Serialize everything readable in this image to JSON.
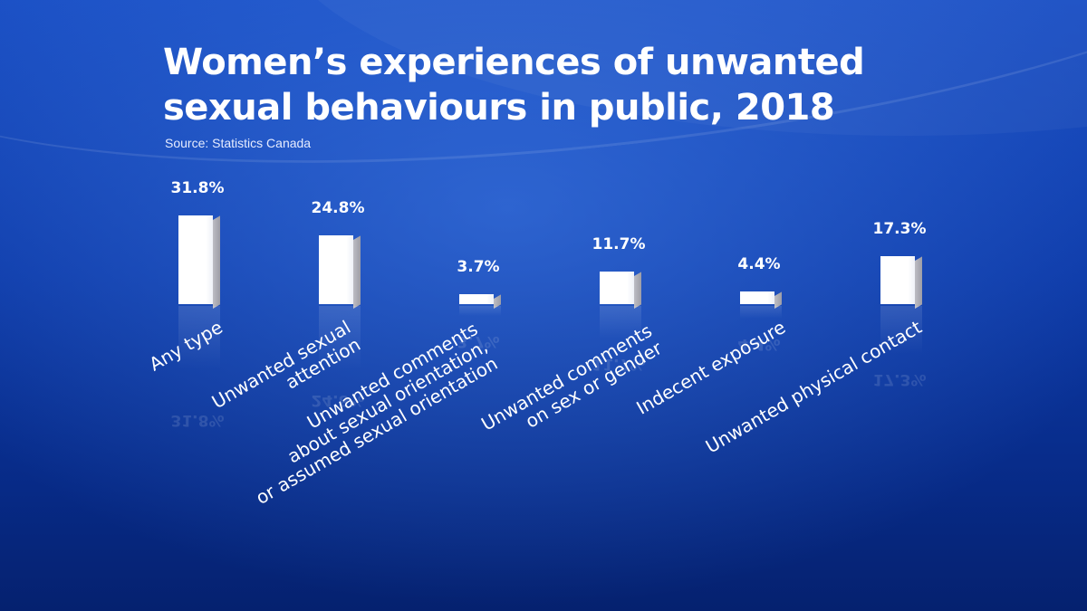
{
  "title": "Women’s experiences of unwanted sexual behaviours in public, 2018",
  "source": "Source: Statistics Canada",
  "colors": {
    "background": "#0d3aa8",
    "bar_face": "#ffffff",
    "bar_side": "#a8a8b0",
    "text": "#ffffff"
  },
  "chart_data": {
    "type": "bar",
    "title": "Women’s experiences of unwanted sexual behaviours in public, 2018",
    "subtitle": "Source: Statistics Canada",
    "xlabel": "",
    "ylabel": "",
    "ylim": [
      0,
      35
    ],
    "grid": false,
    "unit": "%",
    "categories": [
      "Any type",
      "Unwanted sexual\nattention",
      "Unwanted comments\nabout sexual orientation,\nor assumed sexual orientation",
      "Unwanted comments\non sex or gender",
      "Indecent exposure",
      "Unwanted physical contact"
    ],
    "values": [
      31.8,
      24.8,
      3.7,
      11.7,
      4.4,
      17.3
    ],
    "value_labels": [
      "31.8%",
      "24.8%",
      "3.7%",
      "11.7%",
      "4.4%",
      "17.3%"
    ]
  }
}
